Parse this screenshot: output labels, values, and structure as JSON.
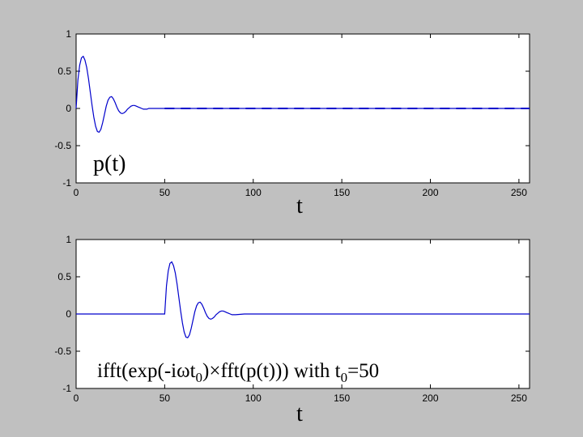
{
  "chart_data": [
    {
      "type": "line",
      "title": "",
      "xlabel": "t",
      "ylabel": "",
      "annotation": "p(t)",
      "xlim": [
        0,
        256
      ],
      "ylim": [
        -1,
        1
      ],
      "xticks": [
        0,
        50,
        100,
        150,
        200,
        250
      ],
      "yticks": [
        1,
        0.5,
        0,
        -0.5,
        -1
      ],
      "grid": false,
      "series": [
        {
          "x": [
            0,
            1,
            2,
            3,
            4,
            5,
            6,
            7,
            8,
            9,
            10,
            11,
            12,
            13,
            14,
            15,
            16,
            17,
            18,
            19,
            20,
            21,
            22,
            23,
            24,
            25,
            26,
            27,
            28,
            29,
            30,
            31,
            32,
            33,
            34,
            35,
            36,
            37,
            38,
            39,
            40,
            41,
            42,
            43,
            44,
            45,
            46,
            47,
            48,
            49,
            50,
            60,
            80,
            100,
            120,
            140,
            160,
            180,
            200,
            220,
            240,
            256
          ],
          "y": [
            0.0,
            0.38,
            0.58,
            0.68,
            0.7,
            0.65,
            0.55,
            0.4,
            0.22,
            0.04,
            -0.12,
            -0.24,
            -0.31,
            -0.32,
            -0.28,
            -0.19,
            -0.08,
            0.03,
            0.11,
            0.15,
            0.16,
            0.13,
            0.08,
            0.02,
            -0.03,
            -0.06,
            -0.07,
            -0.06,
            -0.04,
            -0.01,
            0.01,
            0.03,
            0.04,
            0.04,
            0.03,
            0.02,
            0.01,
            0.0,
            -0.01,
            -0.01,
            -0.01,
            0.0,
            0.0,
            0.0,
            0.0,
            0.0,
            0.0,
            0.0,
            0.0,
            0.0,
            0.0,
            0.0,
            0.0,
            0.0,
            0.0,
            0.0,
            0.0,
            0.0,
            0.0,
            0.0,
            0.0,
            0.0
          ]
        }
      ]
    },
    {
      "type": "line",
      "title": "",
      "xlabel": "t",
      "ylabel": "",
      "annotation_parts": {
        "a": "ifft(exp(-i",
        "omega": "ω",
        "b": "t",
        "sub0": "0",
        "c": ")",
        "times": "×",
        "d": "fft(p(t))) with t",
        "sub1": "0",
        "e": "=50"
      },
      "xlim": [
        0,
        256
      ],
      "ylim": [
        -1,
        1
      ],
      "xticks": [
        0,
        50,
        100,
        150,
        200,
        250
      ],
      "yticks": [
        1,
        0.5,
        0,
        -0.5,
        -1
      ],
      "grid": false,
      "series": [
        {
          "x": [
            0,
            49,
            50,
            51,
            52,
            53,
            54,
            55,
            56,
            57,
            58,
            59,
            60,
            61,
            62,
            63,
            64,
            65,
            66,
            67,
            68,
            69,
            70,
            71,
            72,
            73,
            74,
            75,
            76,
            77,
            78,
            79,
            80,
            81,
            82,
            83,
            84,
            85,
            86,
            87,
            88,
            89,
            90,
            95,
            100,
            105,
            110,
            256
          ],
          "y": [
            0.0,
            0.0,
            0.0,
            0.38,
            0.58,
            0.68,
            0.7,
            0.65,
            0.55,
            0.4,
            0.22,
            0.04,
            -0.12,
            -0.24,
            -0.31,
            -0.32,
            -0.28,
            -0.19,
            -0.08,
            0.03,
            0.11,
            0.15,
            0.16,
            0.13,
            0.08,
            0.02,
            -0.03,
            -0.06,
            -0.07,
            -0.06,
            -0.04,
            -0.01,
            0.01,
            0.03,
            0.04,
            0.04,
            0.03,
            0.02,
            0.01,
            0.0,
            -0.01,
            -0.01,
            -0.01,
            0.0,
            0.0,
            0.0,
            0.0,
            0.0
          ]
        }
      ]
    }
  ],
  "colors": {
    "background": "#c0c0c0",
    "plot_area": "#ffffff",
    "axis": "#000000",
    "line": "#0000cc"
  }
}
